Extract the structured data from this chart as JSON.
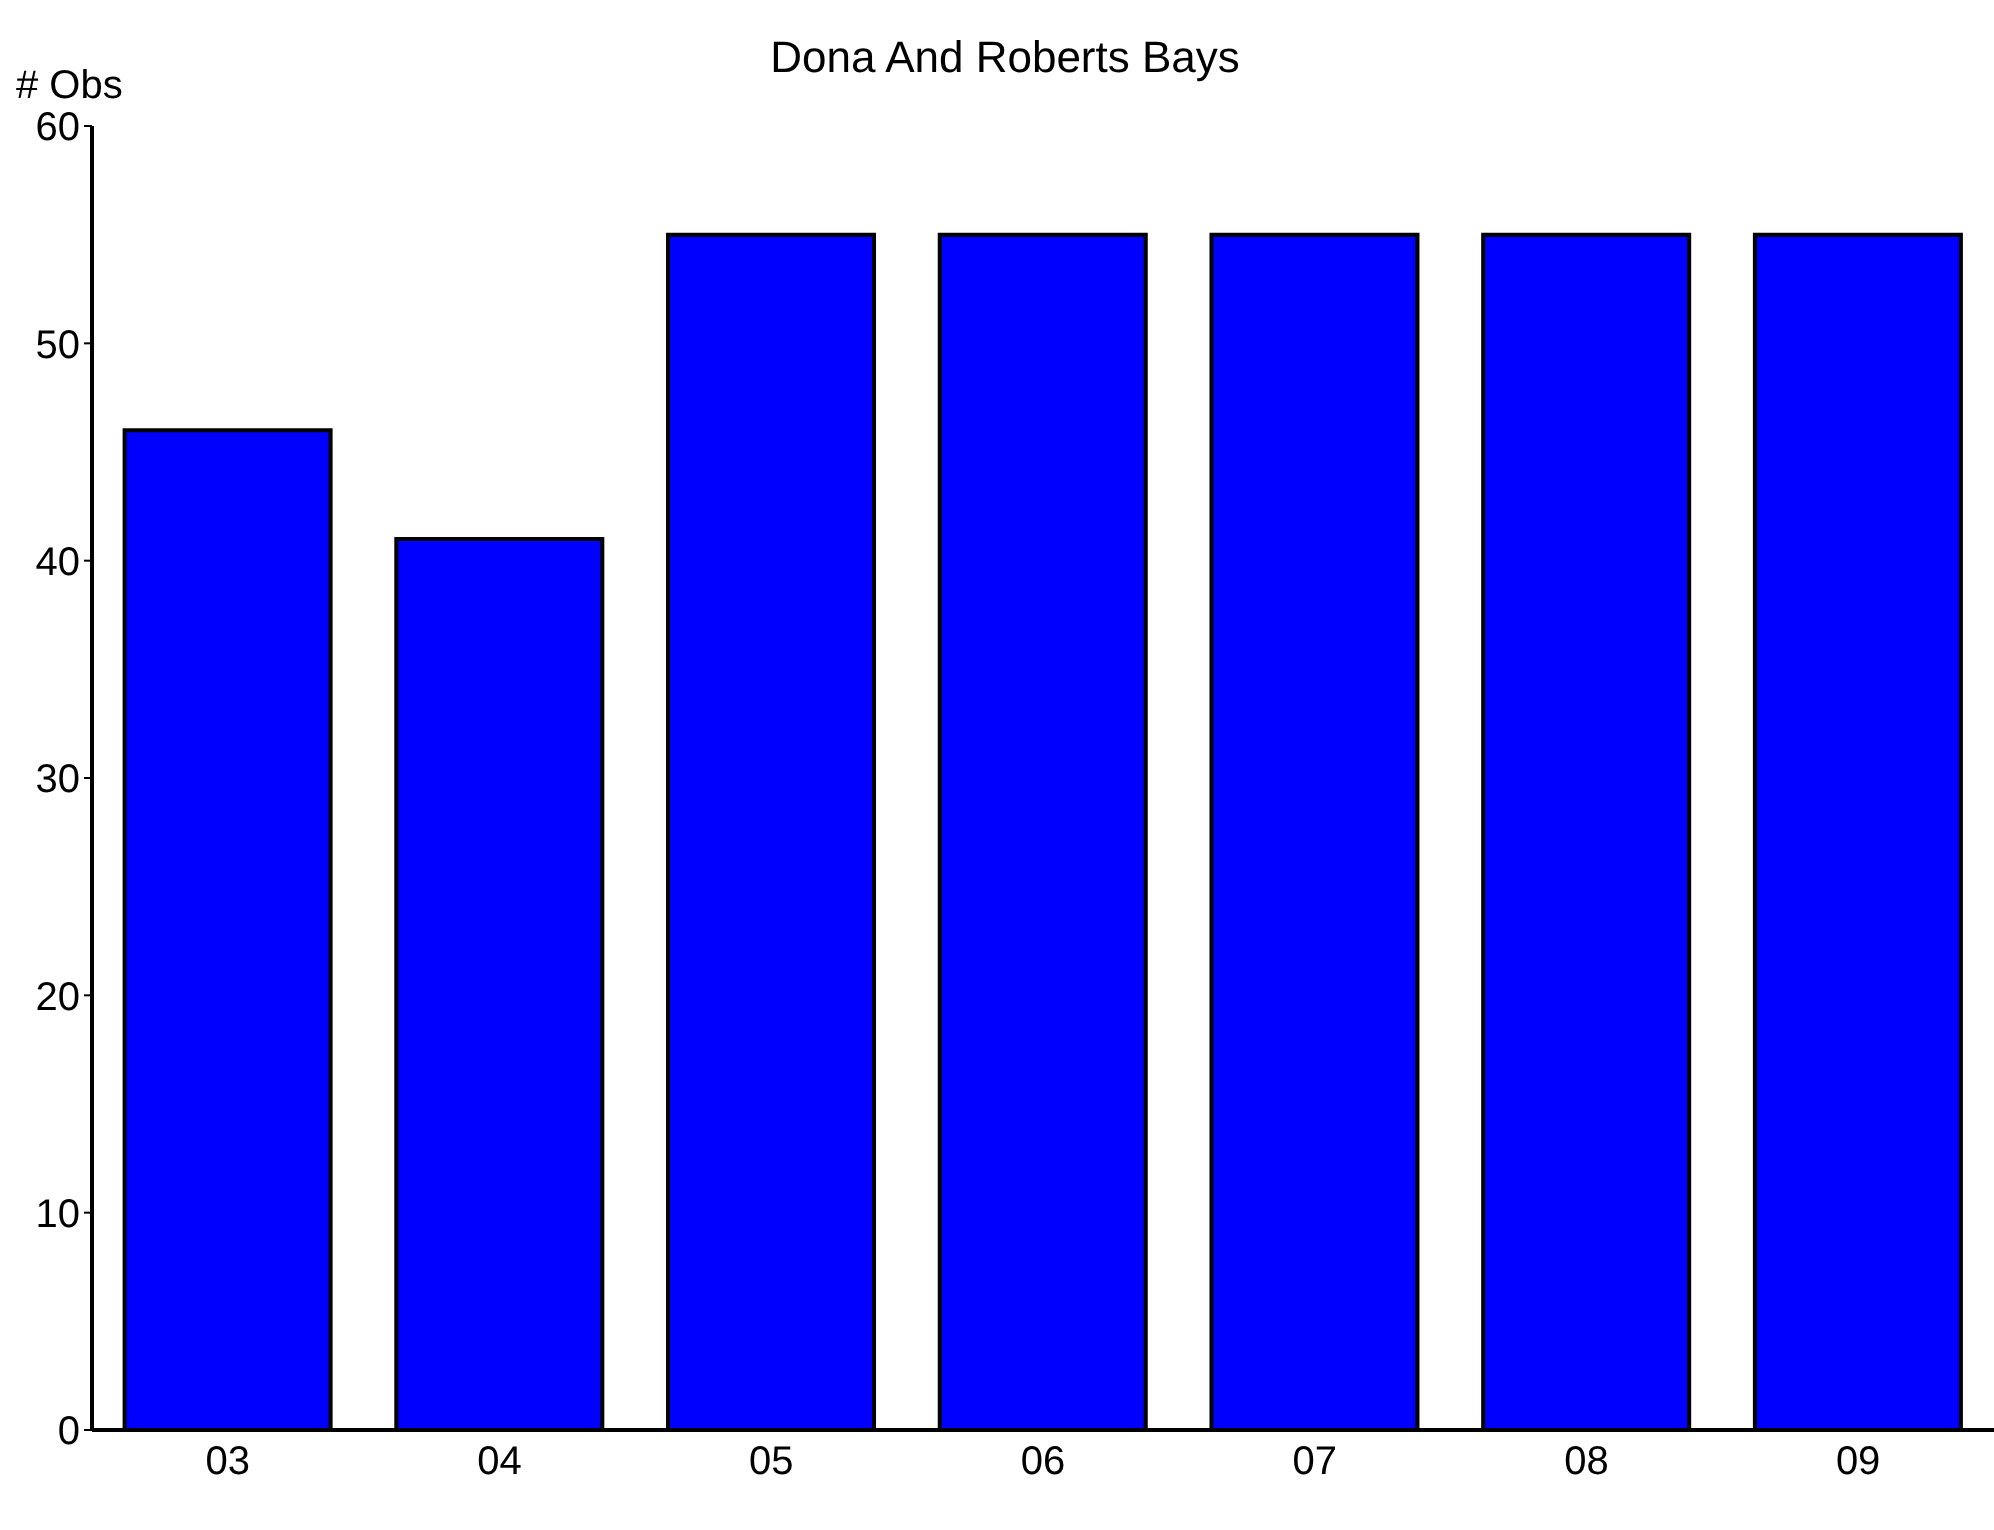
{
  "chart_data": {
    "type": "bar",
    "title": "Dona And Roberts Bays",
    "ylabel": "# Obs",
    "categories": [
      "03",
      "04",
      "05",
      "06",
      "07",
      "08",
      "09"
    ],
    "values": [
      46,
      41,
      55,
      55,
      55,
      55,
      55
    ],
    "color": "#0000ff",
    "ylim": [
      0,
      60
    ],
    "yticks": [
      0,
      10,
      20,
      30,
      40,
      50,
      60
    ],
    "grid": false,
    "legend": false
  }
}
